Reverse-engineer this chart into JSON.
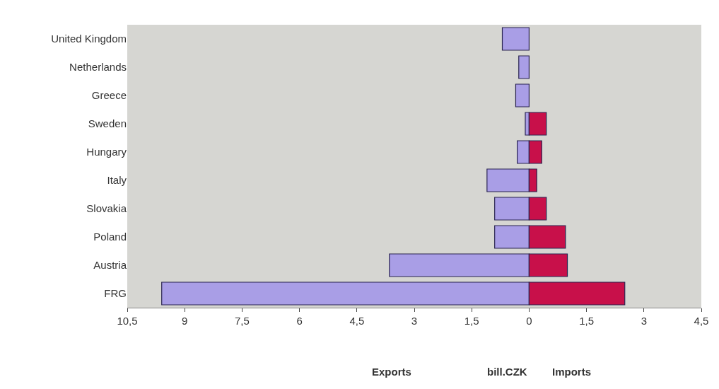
{
  "chart_data": {
    "type": "bar",
    "orientation": "horizontal",
    "stacked": true,
    "categories": [
      "United Kingdom",
      "Netherlands",
      "Greece",
      "Sweden",
      "Hungary",
      "Italy",
      "Slovakia",
      "Poland",
      "Austria",
      "FRG"
    ],
    "series": [
      {
        "color": "#a99ee6",
        "values": [
          -0.7,
          -0.27,
          -0.35,
          -0.1,
          -0.31,
          -1.1,
          -0.9,
          -0.9,
          -3.65,
          -9.6
        ]
      },
      {
        "color": "#c8104a",
        "values": [
          null,
          null,
          null,
          0.45,
          0.33,
          0.2,
          0.45,
          0.95,
          1.0,
          2.5
        ]
      }
    ],
    "xlim": [
      -10.5,
      4.5
    ],
    "xticks": [
      {
        "value": -10.5,
        "label": "10,5"
      },
      {
        "value": -9,
        "label": "9"
      },
      {
        "value": -7.5,
        "label": "7,5"
      },
      {
        "value": -6,
        "label": "6"
      },
      {
        "value": -4.5,
        "label": "4,5"
      },
      {
        "value": -3,
        "label": "3"
      },
      {
        "value": -1.5,
        "label": "1,5"
      },
      0,
      {
        "value": 1.5,
        "label": "1,5"
      },
      {
        "value": 3,
        "label": "3"
      },
      {
        "value": 4.5,
        "label": "4,5"
      }
    ],
    "annotations": [
      "Exports",
      "bill.CZK",
      "Imports"
    ],
    "grid": false
  }
}
